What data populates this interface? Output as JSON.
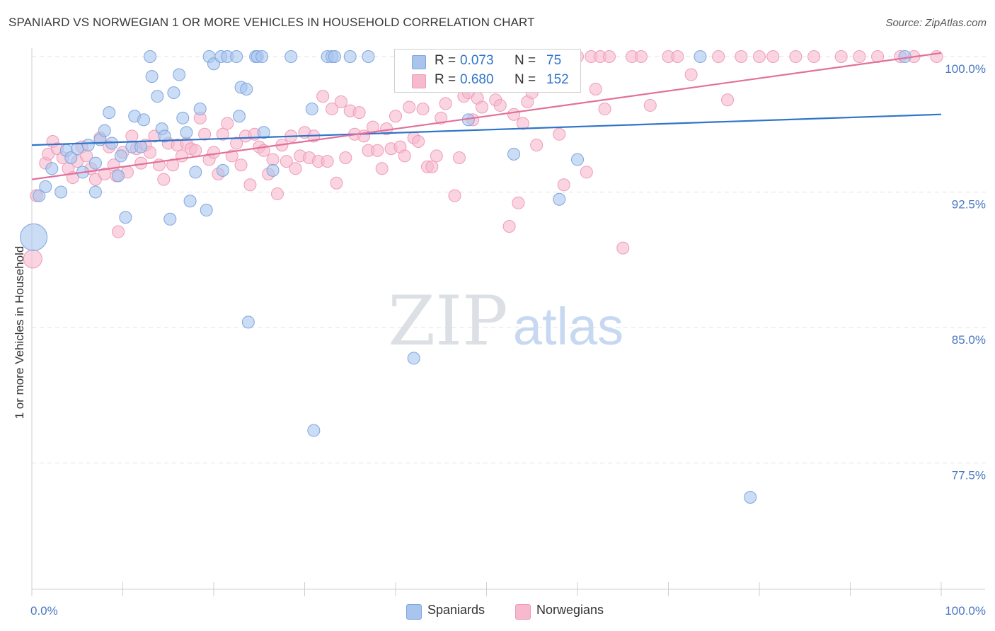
{
  "title": "SPANIARD VS NORWEGIAN 1 OR MORE VEHICLES IN HOUSEHOLD CORRELATION CHART",
  "source": "Source: ZipAtlas.com",
  "watermark": {
    "zip": "ZIP",
    "atlas": "atlas"
  },
  "colors": {
    "blue_fill": "#a9c5ee",
    "blue_stroke": "#7ea6e0",
    "blue_line": "#2f74c9",
    "pink_fill": "#f7b9cd",
    "pink_stroke": "#ef9bb7",
    "pink_line": "#e2709b",
    "tick_label": "#4a78c2"
  },
  "legend": {
    "rows": [
      {
        "r_label": "R =",
        "r_value": "0.073",
        "n_label": "N =",
        "n_value": "75"
      },
      {
        "r_label": "R =",
        "r_value": "0.680",
        "n_label": "N =",
        "n_value": "152"
      }
    ]
  },
  "bottom_legend": {
    "spaniards": "Spaniards",
    "norwegians": "Norwegians"
  },
  "chart_data": {
    "type": "scatter",
    "title": "SPANIARD VS NORWEGIAN 1 OR MORE VEHICLES IN HOUSEHOLD CORRELATION CHART",
    "xlabel": "",
    "ylabel": "1 or more Vehicles in Household",
    "xlim": [
      0,
      100
    ],
    "ylim": [
      70.5,
      100.8
    ],
    "x_tick_labels": [
      "0.0%",
      "100.0%"
    ],
    "y_ticks": [
      100.0,
      92.5,
      85.0,
      77.5
    ],
    "y_tick_labels": [
      "100.0%",
      "92.5%",
      "85.0%",
      "77.5%"
    ],
    "grid": true,
    "legend_position": "top-center",
    "series": [
      {
        "name": "Spaniards",
        "r": 0.073,
        "n": 75,
        "trend": {
          "x": [
            0,
            100
          ],
          "y": [
            95.1,
            96.8
          ]
        },
        "points": [
          [
            0.2,
            90.0,
            3
          ],
          [
            0.8,
            92.3,
            1
          ],
          [
            1.5,
            92.8,
            1
          ],
          [
            2.2,
            93.8,
            1
          ],
          [
            3.2,
            92.5,
            1
          ],
          [
            3.8,
            94.8,
            1
          ],
          [
            4.3,
            94.4,
            1
          ],
          [
            5.0,
            94.9,
            1
          ],
          [
            5.6,
            93.6,
            1
          ],
          [
            6.2,
            95.1,
            1
          ],
          [
            7.0,
            94.1,
            1
          ],
          [
            7.0,
            92.5,
            1
          ],
          [
            7.5,
            95.4,
            1
          ],
          [
            8.0,
            95.9,
            1
          ],
          [
            8.5,
            96.9,
            1
          ],
          [
            8.8,
            95.2,
            1
          ],
          [
            9.5,
            93.4,
            1
          ],
          [
            9.8,
            94.5,
            1
          ],
          [
            10.3,
            91.1,
            1
          ],
          [
            11.0,
            95.0,
            1
          ],
          [
            11.3,
            96.7,
            1
          ],
          [
            12.0,
            95.0,
            1
          ],
          [
            12.3,
            96.5,
            1
          ],
          [
            13.0,
            100.0,
            1
          ],
          [
            13.2,
            98.9,
            1
          ],
          [
            13.8,
            97.8,
            1
          ],
          [
            14.3,
            96.0,
            1
          ],
          [
            14.6,
            95.6,
            1
          ],
          [
            15.2,
            91.0,
            1
          ],
          [
            15.6,
            98.0,
            1
          ],
          [
            16.2,
            99.0,
            1
          ],
          [
            16.6,
            96.6,
            1
          ],
          [
            17.0,
            95.8,
            1
          ],
          [
            17.4,
            92.0,
            1
          ],
          [
            18.0,
            93.6,
            1
          ],
          [
            18.5,
            97.1,
            1
          ],
          [
            19.2,
            91.5,
            1
          ],
          [
            19.5,
            100.0,
            1
          ],
          [
            20.0,
            99.6,
            1
          ],
          [
            20.8,
            100.0,
            1
          ],
          [
            21.0,
            93.7,
            1
          ],
          [
            21.5,
            100.0,
            1
          ],
          [
            22.5,
            100.0,
            1
          ],
          [
            22.8,
            96.7,
            1
          ],
          [
            23.0,
            98.3,
            1
          ],
          [
            23.6,
            98.2,
            1
          ],
          [
            23.8,
            85.3,
            1
          ],
          [
            24.6,
            100.0,
            1
          ],
          [
            24.8,
            100.0,
            1
          ],
          [
            25.3,
            100.0,
            1
          ],
          [
            25.5,
            95.8,
            1
          ],
          [
            26.5,
            93.7,
            1
          ],
          [
            28.5,
            100.0,
            1
          ],
          [
            30.8,
            97.1,
            1
          ],
          [
            31.0,
            79.3,
            1
          ],
          [
            32.5,
            100.0,
            1
          ],
          [
            33.0,
            100.0,
            1
          ],
          [
            33.3,
            100.0,
            1
          ],
          [
            35.0,
            100.0,
            1
          ],
          [
            37.0,
            100.0,
            1
          ],
          [
            41.0,
            100.0,
            1
          ],
          [
            42.0,
            83.3,
            1
          ],
          [
            44.0,
            100.0,
            1
          ],
          [
            47.3,
            100.0,
            1
          ],
          [
            48.0,
            96.5,
            1
          ],
          [
            50.0,
            100.0,
            1
          ],
          [
            52.5,
            100.0,
            1
          ],
          [
            53.0,
            94.6,
            1
          ],
          [
            55.0,
            100.0,
            1
          ],
          [
            57.5,
            100.0,
            1
          ],
          [
            58.0,
            92.1,
            1
          ],
          [
            60.0,
            94.3,
            1
          ],
          [
            73.5,
            100.0,
            1
          ],
          [
            79.0,
            75.6,
            1
          ],
          [
            96.0,
            100.0,
            1
          ]
        ]
      },
      {
        "name": "Norwegians",
        "r": 0.68,
        "n": 152,
        "trend": {
          "x": [
            0,
            100
          ],
          "y": [
            93.2,
            100.2
          ]
        },
        "points": [
          [
            0.1,
            88.8,
            2
          ],
          [
            0.5,
            92.3,
            1
          ],
          [
            1.5,
            94.1,
            1
          ],
          [
            1.8,
            94.6,
            1
          ],
          [
            2.3,
            95.3,
            1
          ],
          [
            2.8,
            94.9,
            1
          ],
          [
            3.4,
            94.4,
            1
          ],
          [
            4.0,
            93.8,
            1
          ],
          [
            4.5,
            93.3,
            1
          ],
          [
            5.0,
            94.2,
            1
          ],
          [
            5.5,
            95.0,
            1
          ],
          [
            6.0,
            94.5,
            1
          ],
          [
            6.5,
            93.8,
            1
          ],
          [
            7.0,
            93.2,
            1
          ],
          [
            7.5,
            95.5,
            1
          ],
          [
            8.0,
            93.5,
            1
          ],
          [
            8.5,
            95.0,
            1
          ],
          [
            9.0,
            94.0,
            1
          ],
          [
            9.3,
            93.4,
            1
          ],
          [
            9.5,
            90.3,
            1
          ],
          [
            10.0,
            94.7,
            1
          ],
          [
            10.5,
            93.6,
            1
          ],
          [
            11.0,
            95.6,
            1
          ],
          [
            11.5,
            94.9,
            1
          ],
          [
            12.0,
            94.1,
            1
          ],
          [
            12.5,
            95.1,
            1
          ],
          [
            13.0,
            94.7,
            1
          ],
          [
            13.5,
            95.6,
            1
          ],
          [
            14.0,
            94.0,
            1
          ],
          [
            14.5,
            93.2,
            1
          ],
          [
            15.0,
            95.2,
            1
          ],
          [
            15.5,
            94.0,
            1
          ],
          [
            16.0,
            95.1,
            1
          ],
          [
            16.5,
            94.5,
            1
          ],
          [
            17.0,
            95.2,
            1
          ],
          [
            17.5,
            94.9,
            1
          ],
          [
            18.0,
            94.8,
            1
          ],
          [
            18.5,
            96.6,
            1
          ],
          [
            19.0,
            95.7,
            1
          ],
          [
            19.5,
            94.3,
            1
          ],
          [
            20.0,
            94.7,
            1
          ],
          [
            20.5,
            93.5,
            1
          ],
          [
            21.0,
            95.7,
            1
          ],
          [
            21.5,
            96.3,
            1
          ],
          [
            22.0,
            94.5,
            1
          ],
          [
            22.5,
            95.2,
            1
          ],
          [
            23.0,
            94.0,
            1
          ],
          [
            23.5,
            95.6,
            1
          ],
          [
            24.0,
            92.9,
            1
          ],
          [
            24.5,
            95.7,
            1
          ],
          [
            25.0,
            95.0,
            1
          ],
          [
            25.5,
            94.8,
            1
          ],
          [
            26.0,
            93.5,
            1
          ],
          [
            26.5,
            94.3,
            1
          ],
          [
            27.0,
            92.4,
            1
          ],
          [
            27.5,
            95.1,
            1
          ],
          [
            28.0,
            94.2,
            1
          ],
          [
            28.5,
            95.6,
            1
          ],
          [
            29.0,
            93.8,
            1
          ],
          [
            29.5,
            94.5,
            1
          ],
          [
            30.0,
            95.8,
            1
          ],
          [
            30.5,
            94.4,
            1
          ],
          [
            31.0,
            95.6,
            1
          ],
          [
            31.5,
            94.2,
            1
          ],
          [
            32.0,
            97.8,
            1
          ],
          [
            32.5,
            94.2,
            1
          ],
          [
            33.0,
            97.1,
            1
          ],
          [
            33.5,
            93.0,
            1
          ],
          [
            34.0,
            97.5,
            1
          ],
          [
            34.5,
            94.4,
            1
          ],
          [
            35.0,
            97.0,
            1
          ],
          [
            35.5,
            95.7,
            1
          ],
          [
            36.0,
            96.9,
            1
          ],
          [
            36.5,
            95.6,
            1
          ],
          [
            37.0,
            94.8,
            1
          ],
          [
            37.5,
            96.1,
            1
          ],
          [
            38.0,
            94.8,
            1
          ],
          [
            38.5,
            93.8,
            1
          ],
          [
            39.0,
            96.0,
            1
          ],
          [
            39.5,
            94.9,
            1
          ],
          [
            40.0,
            96.7,
            1
          ],
          [
            40.5,
            95.0,
            1
          ],
          [
            41.0,
            94.5,
            1
          ],
          [
            41.5,
            97.2,
            1
          ],
          [
            42.0,
            95.5,
            1
          ],
          [
            42.5,
            95.3,
            1
          ],
          [
            43.0,
            97.1,
            1
          ],
          [
            43.5,
            93.9,
            1
          ],
          [
            44.0,
            93.9,
            1
          ],
          [
            44.5,
            94.5,
            1
          ],
          [
            45.0,
            96.6,
            1
          ],
          [
            45.5,
            97.4,
            1
          ],
          [
            46.0,
            100.0,
            1
          ],
          [
            46.5,
            92.3,
            1
          ],
          [
            47.0,
            94.4,
            1
          ],
          [
            47.5,
            97.8,
            1
          ],
          [
            48.0,
            98.0,
            1
          ],
          [
            48.5,
            96.5,
            1
          ],
          [
            49.0,
            97.7,
            1
          ],
          [
            49.5,
            97.2,
            1
          ],
          [
            50.0,
            100.0,
            1
          ],
          [
            50.5,
            98.8,
            1
          ],
          [
            51.0,
            97.6,
            1
          ],
          [
            51.5,
            97.3,
            1
          ],
          [
            52.0,
            100.0,
            1
          ],
          [
            52.5,
            90.6,
            1
          ],
          [
            53.0,
            96.8,
            1
          ],
          [
            53.5,
            91.9,
            1
          ],
          [
            54.0,
            96.3,
            1
          ],
          [
            54.5,
            97.5,
            1
          ],
          [
            55.0,
            98.0,
            1
          ],
          [
            55.5,
            95.1,
            1
          ],
          [
            56.0,
            99.0,
            1
          ],
          [
            56.5,
            100.0,
            1
          ],
          [
            57.0,
            100.0,
            1
          ],
          [
            58.0,
            95.7,
            1
          ],
          [
            58.5,
            92.9,
            1
          ],
          [
            59.0,
            100.0,
            1
          ],
          [
            59.5,
            98.8,
            1
          ],
          [
            60.0,
            100.0,
            1
          ],
          [
            61.0,
            93.6,
            1
          ],
          [
            61.5,
            100.0,
            1
          ],
          [
            62.0,
            98.2,
            1
          ],
          [
            62.5,
            100.0,
            1
          ],
          [
            63.0,
            97.1,
            1
          ],
          [
            63.5,
            100.0,
            1
          ],
          [
            65.0,
            89.4,
            1
          ],
          [
            66.0,
            100.0,
            1
          ],
          [
            67.0,
            100.0,
            1
          ],
          [
            68.0,
            97.3,
            1
          ],
          [
            70.0,
            100.0,
            1
          ],
          [
            71.0,
            100.0,
            1
          ],
          [
            72.5,
            99.0,
            1
          ],
          [
            75.5,
            100.0,
            1
          ],
          [
            76.5,
            97.6,
            1
          ],
          [
            78.0,
            100.0,
            1
          ],
          [
            80.0,
            100.0,
            1
          ],
          [
            81.5,
            100.0,
            1
          ],
          [
            84.0,
            100.0,
            1
          ],
          [
            86.0,
            100.0,
            1
          ],
          [
            89.0,
            100.0,
            1
          ],
          [
            91.0,
            100.0,
            1
          ],
          [
            93.0,
            100.0,
            1
          ],
          [
            95.5,
            100.0,
            1
          ],
          [
            97.0,
            100.0,
            1
          ],
          [
            99.5,
            100.0,
            1
          ]
        ]
      }
    ]
  }
}
